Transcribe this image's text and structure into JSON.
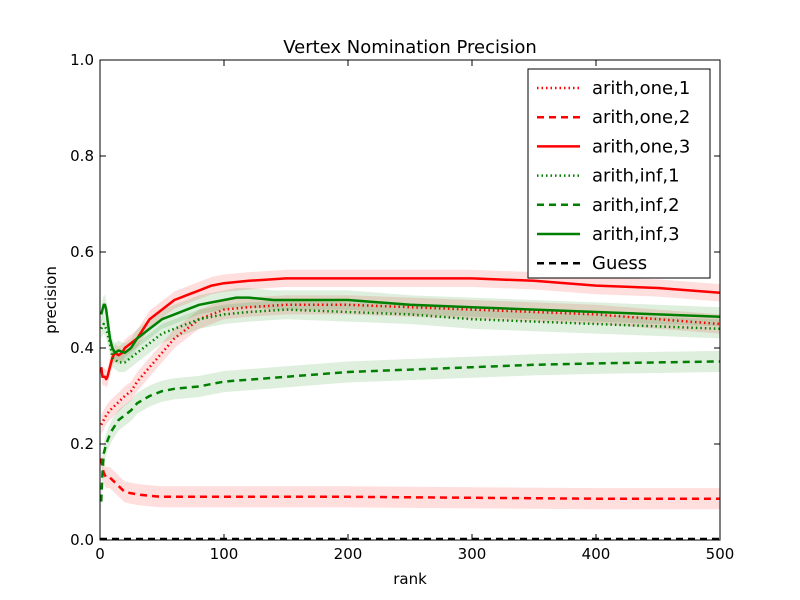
{
  "chart_data": {
    "type": "line",
    "title": "Vertex Nomination Precision",
    "xlabel": "rank",
    "ylabel": "precision",
    "xlim": [
      0,
      500
    ],
    "ylim": [
      0.0,
      1.0
    ],
    "xticks": [
      0,
      100,
      200,
      300,
      400,
      500
    ],
    "xtick_labels": [
      "0",
      "100",
      "200",
      "300",
      "400",
      "500"
    ],
    "yticks": [
      0.0,
      0.2,
      0.4,
      0.6,
      0.8,
      1.0
    ],
    "ytick_labels": [
      "0.0",
      "0.2",
      "0.4",
      "0.6",
      "0.8",
      "1.0"
    ],
    "grid": false,
    "legend_position": "top-right",
    "series": [
      {
        "name": "arith,one,1",
        "color": "#ff0000",
        "style": "dotted",
        "band": 0.02,
        "x": [
          1,
          3,
          5,
          8,
          12,
          16,
          20,
          25,
          30,
          40,
          50,
          60,
          70,
          80,
          90,
          100,
          120,
          150,
          200,
          250,
          300,
          350,
          400,
          450,
          500
        ],
        "y": [
          0.24,
          0.25,
          0.26,
          0.27,
          0.28,
          0.29,
          0.3,
          0.31,
          0.33,
          0.36,
          0.39,
          0.42,
          0.44,
          0.46,
          0.47,
          0.48,
          0.485,
          0.49,
          0.49,
          0.485,
          0.48,
          0.475,
          0.47,
          0.46,
          0.45
        ]
      },
      {
        "name": "arith,one,2",
        "color": "#ff0000",
        "style": "dashed",
        "band": 0.022,
        "x": [
          1,
          2,
          3,
          5,
          8,
          12,
          16,
          20,
          30,
          40,
          50,
          70,
          100,
          150,
          200,
          300,
          400,
          500
        ],
        "y": [
          0.17,
          0.15,
          0.14,
          0.13,
          0.13,
          0.12,
          0.11,
          0.1,
          0.095,
          0.092,
          0.09,
          0.09,
          0.09,
          0.09,
          0.09,
          0.088,
          0.086,
          0.086
        ]
      },
      {
        "name": "arith,one,3",
        "color": "#ff0000",
        "style": "solid",
        "band": 0.018,
        "x": [
          1,
          2,
          3,
          4,
          5,
          6,
          8,
          10,
          12,
          15,
          18,
          20,
          25,
          30,
          35,
          40,
          50,
          60,
          70,
          80,
          90,
          100,
          120,
          150,
          200,
          250,
          300,
          350,
          400,
          450,
          500
        ],
        "y": [
          0.36,
          0.34,
          0.34,
          0.34,
          0.335,
          0.34,
          0.36,
          0.38,
          0.39,
          0.385,
          0.39,
          0.4,
          0.41,
          0.42,
          0.44,
          0.46,
          0.48,
          0.5,
          0.51,
          0.52,
          0.53,
          0.535,
          0.54,
          0.545,
          0.545,
          0.545,
          0.545,
          0.54,
          0.53,
          0.525,
          0.515
        ]
      },
      {
        "name": "arith,inf,1",
        "color": "#008000",
        "style": "dotted",
        "band": 0.02,
        "x": [
          1,
          3,
          5,
          8,
          10,
          15,
          20,
          25,
          30,
          40,
          50,
          60,
          70,
          80,
          90,
          100,
          120,
          150,
          200,
          250,
          300,
          350,
          400,
          450,
          500
        ],
        "y": [
          0.44,
          0.45,
          0.44,
          0.41,
          0.38,
          0.37,
          0.37,
          0.38,
          0.39,
          0.41,
          0.43,
          0.44,
          0.45,
          0.46,
          0.465,
          0.47,
          0.475,
          0.48,
          0.475,
          0.47,
          0.46,
          0.455,
          0.45,
          0.445,
          0.44
        ]
      },
      {
        "name": "arith,inf,2",
        "color": "#008000",
        "style": "dashed",
        "band": 0.022,
        "x": [
          1,
          2,
          3,
          5,
          8,
          10,
          15,
          20,
          25,
          30,
          40,
          50,
          60,
          80,
          100,
          150,
          200,
          250,
          300,
          350,
          400,
          450,
          500
        ],
        "y": [
          0.08,
          0.14,
          0.18,
          0.2,
          0.22,
          0.23,
          0.25,
          0.26,
          0.27,
          0.285,
          0.3,
          0.31,
          0.315,
          0.32,
          0.33,
          0.34,
          0.35,
          0.355,
          0.36,
          0.365,
          0.368,
          0.37,
          0.372
        ]
      },
      {
        "name": "arith,inf,3",
        "color": "#008000",
        "style": "solid",
        "band": 0.02,
        "x": [
          1,
          2,
          3,
          4,
          5,
          6,
          8,
          10,
          12,
          15,
          20,
          25,
          30,
          40,
          50,
          60,
          70,
          80,
          90,
          100,
          110,
          120,
          140,
          160,
          200,
          250,
          300,
          350,
          400,
          450,
          500
        ],
        "y": [
          0.47,
          0.48,
          0.49,
          0.49,
          0.48,
          0.46,
          0.42,
          0.4,
          0.39,
          0.395,
          0.39,
          0.4,
          0.42,
          0.44,
          0.46,
          0.47,
          0.48,
          0.49,
          0.495,
          0.5,
          0.505,
          0.505,
          0.5,
          0.5,
          0.5,
          0.49,
          0.485,
          0.48,
          0.475,
          0.47,
          0.465
        ]
      },
      {
        "name": "Guess",
        "color": "#000000",
        "style": "dashed",
        "band": 0,
        "x": [
          0,
          500
        ],
        "y": [
          0.002,
          0.002
        ]
      }
    ]
  }
}
